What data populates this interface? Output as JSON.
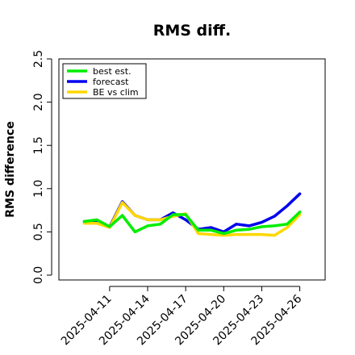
{
  "chart_data": {
    "type": "line",
    "title": "RMS diff.",
    "xlabel": "",
    "ylabel": "RMS difference",
    "ylim": [
      0,
      2.5
    ],
    "yticks": [
      "0.0",
      "0.5",
      "1.0",
      "1.5",
      "2.0",
      "2.5"
    ],
    "x": [
      "2025-04-09",
      "2025-04-10",
      "2025-04-11",
      "2025-04-12",
      "2025-04-13",
      "2025-04-14",
      "2025-04-15",
      "2025-04-16",
      "2025-04-17",
      "2025-04-18",
      "2025-04-19",
      "2025-04-20",
      "2025-04-21",
      "2025-04-22",
      "2025-04-23",
      "2025-04-24",
      "2025-04-25",
      "2025-04-26"
    ],
    "xtick_labels": [
      {
        "date": "2025-04-11",
        "label": "2025-04-11",
        "color": "#000000"
      },
      {
        "date": "2025-04-14",
        "label": "2025-04-14",
        "color": "#000000"
      },
      {
        "date": "2025-04-17",
        "label": "2025-04-17",
        "color": "#228b22"
      },
      {
        "date": "2025-04-20",
        "label": "2025-04-20",
        "color": "#000000"
      },
      {
        "date": "2025-04-23",
        "label": "2025-04-23",
        "color": "#000000"
      },
      {
        "date": "2025-04-26",
        "label": "2025-04-26",
        "color": "#000000"
      }
    ],
    "xlim": [
      "2025-04-07",
      "2025-04-28"
    ],
    "legend_position": "top-left",
    "grid": false,
    "series": [
      {
        "name": "best est.",
        "color": "#00ee00",
        "values": [
          0.62,
          0.64,
          0.56,
          0.69,
          0.5,
          0.57,
          0.59,
          0.7,
          0.7,
          0.52,
          0.52,
          0.48,
          0.52,
          0.53,
          0.56,
          0.57,
          0.59,
          0.73
        ]
      },
      {
        "name": "forecast",
        "color": "#0000ee",
        "values": [
          0.62,
          0.62,
          0.56,
          0.85,
          0.69,
          0.64,
          0.64,
          0.72,
          0.64,
          0.53,
          0.55,
          0.5,
          0.59,
          0.57,
          0.61,
          0.68,
          0.8,
          0.94
        ]
      },
      {
        "name": "BE vs clim",
        "color": "#ffd700",
        "values": [
          0.6,
          0.6,
          0.55,
          0.84,
          0.69,
          0.64,
          0.64,
          0.68,
          0.71,
          0.48,
          0.47,
          0.46,
          0.47,
          0.47,
          0.47,
          0.46,
          0.55,
          0.7
        ]
      }
    ]
  }
}
